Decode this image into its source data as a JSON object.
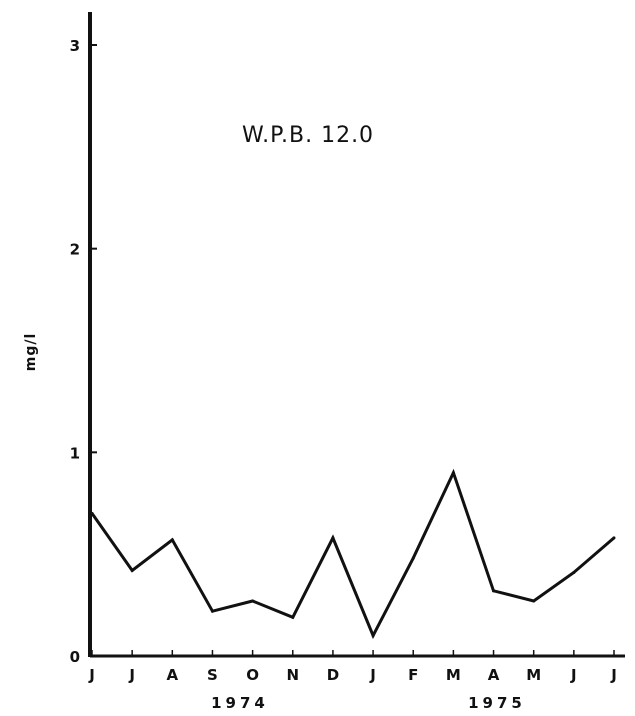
{
  "chart_data": {
    "type": "line",
    "title": "W.P.B. 12.0",
    "ylabel": "mg/l",
    "xlabel": "",
    "x": [
      "J",
      "J",
      "A",
      "S",
      "O",
      "N",
      "D",
      "J",
      "F",
      "M",
      "A",
      "M",
      "J",
      "J"
    ],
    "years": [
      "1974",
      "1975"
    ],
    "yticks": [
      "0",
      "1",
      "2",
      "3"
    ],
    "ylim": [
      0,
      3.1
    ],
    "grid": false,
    "legend": "none",
    "series": [
      {
        "values": [
          0.7,
          0.42,
          0.57,
          0.22,
          0.27,
          0.19,
          0.58,
          0.1,
          0.48,
          0.9,
          0.32,
          0.27,
          0.41,
          0.58
        ]
      }
    ],
    "colors": {
      "line": "#111111",
      "axis": "#111111"
    }
  }
}
